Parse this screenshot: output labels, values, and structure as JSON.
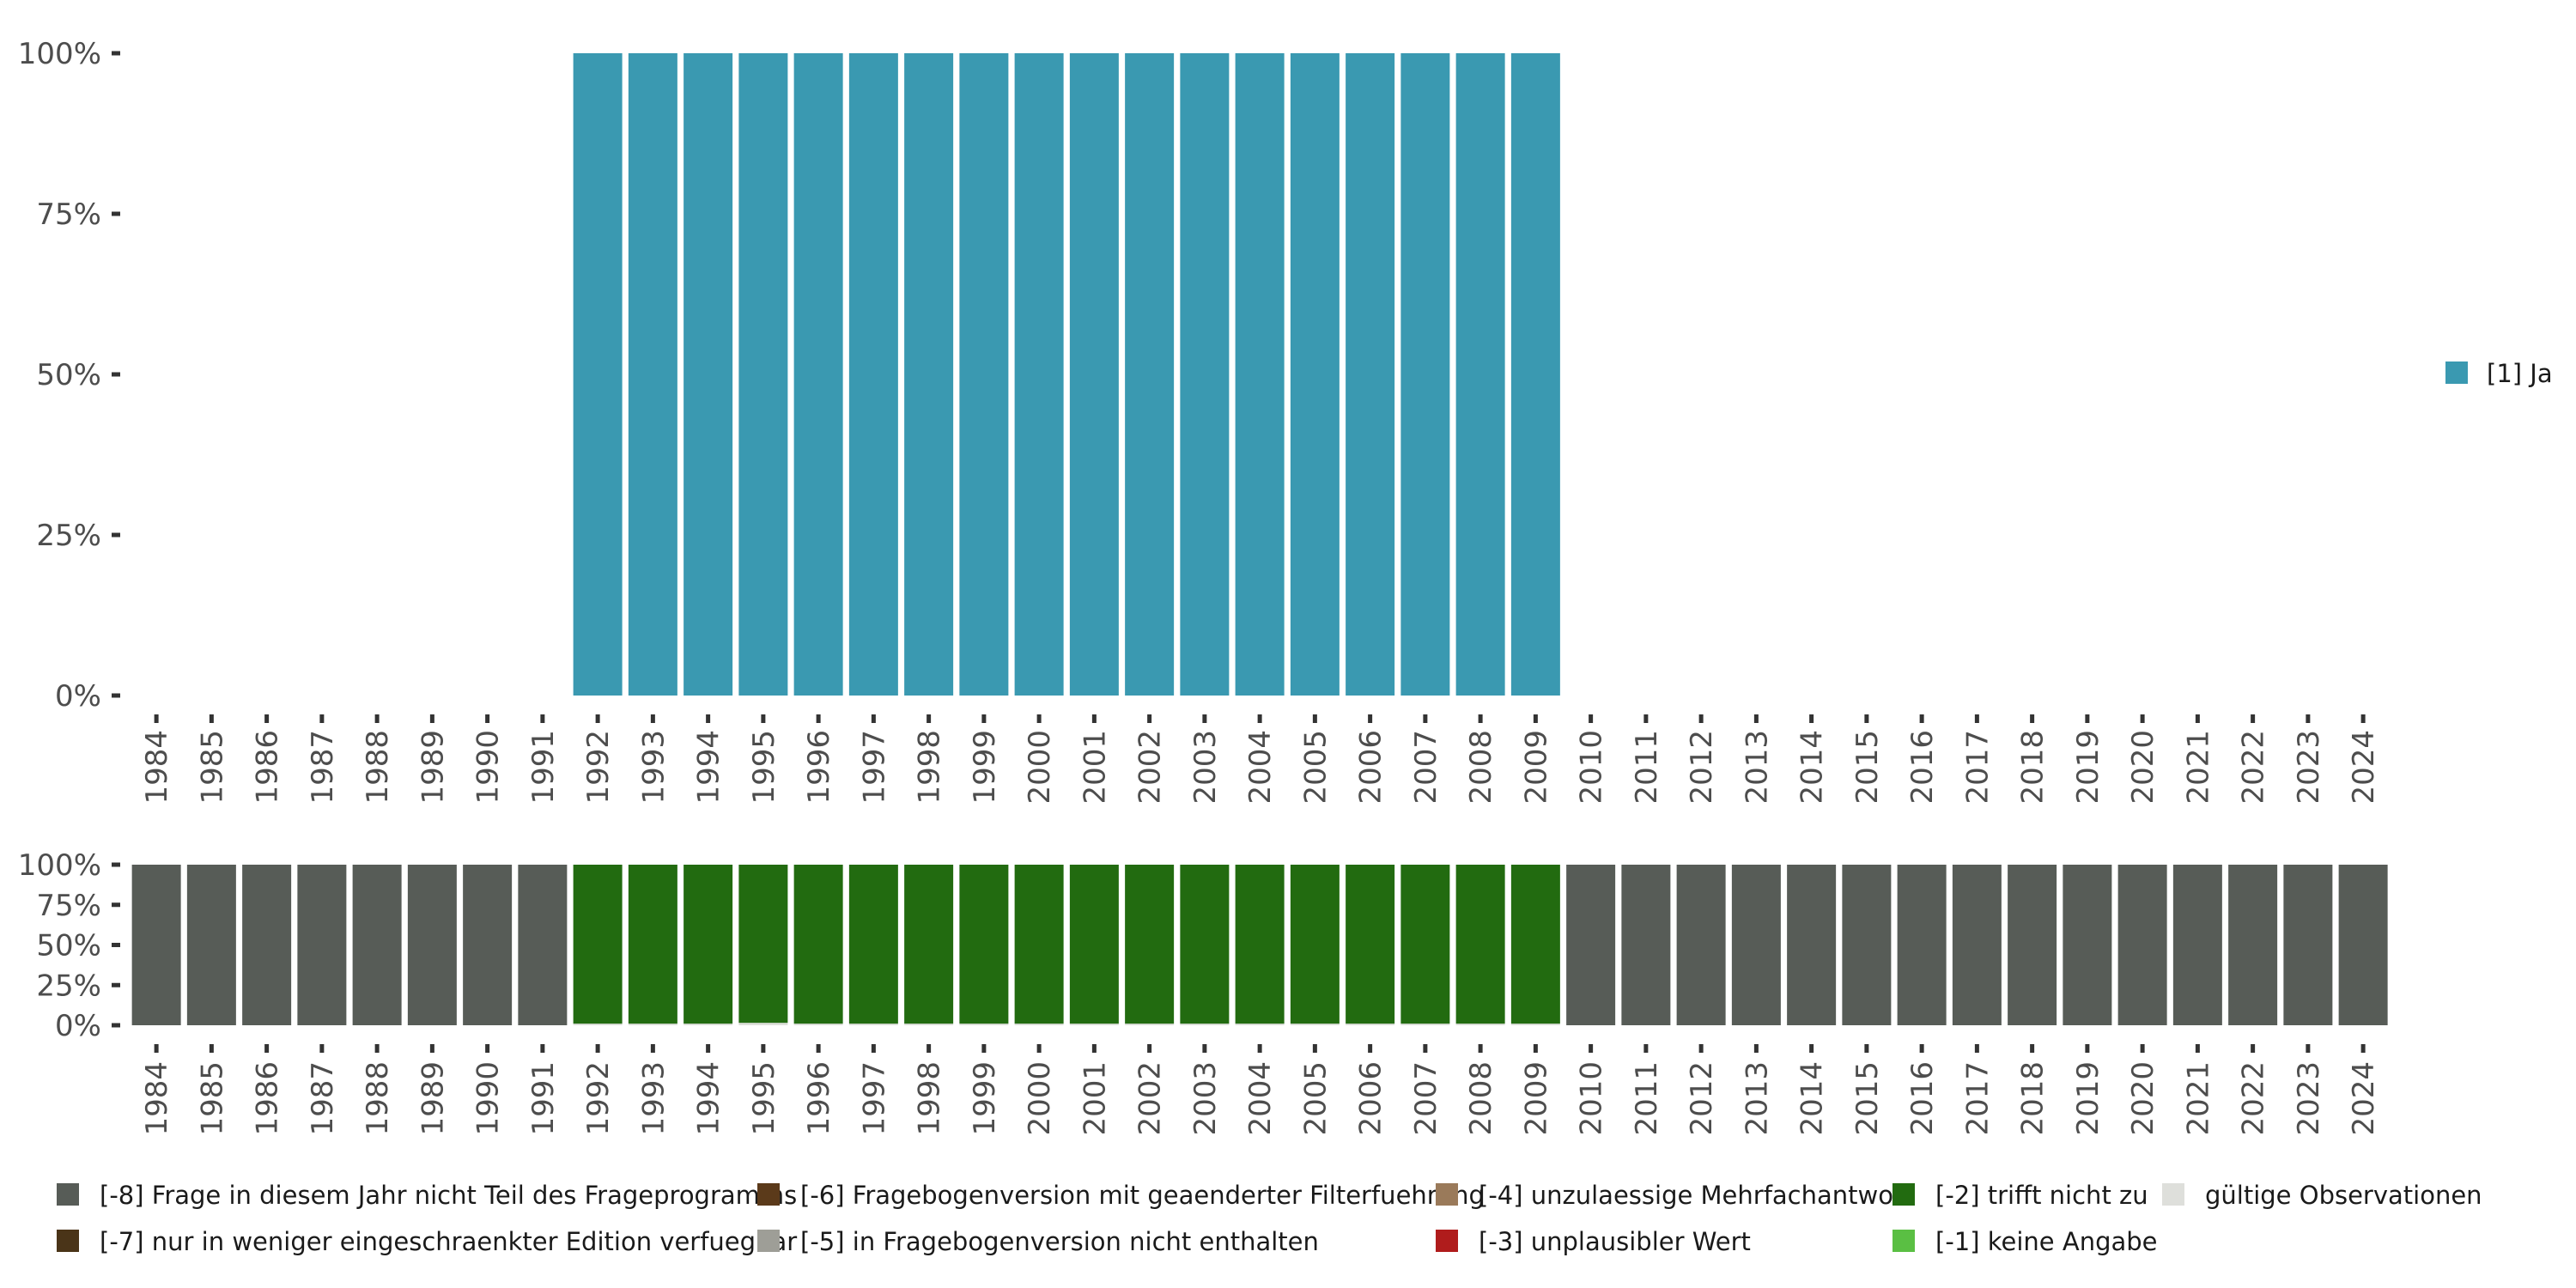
{
  "chart_data": [
    {
      "type": "bar",
      "stacked": true,
      "categories": [
        "1984",
        "1985",
        "1986",
        "1987",
        "1988",
        "1989",
        "1990",
        "1991",
        "1992",
        "1993",
        "1994",
        "1995",
        "1996",
        "1997",
        "1998",
        "1999",
        "2000",
        "2001",
        "2002",
        "2003",
        "2004",
        "2005",
        "2006",
        "2007",
        "2008",
        "2009",
        "2010",
        "2011",
        "2012",
        "2013",
        "2014",
        "2015",
        "2016",
        "2017",
        "2018",
        "2019",
        "2020",
        "2021",
        "2022",
        "2023",
        "2024"
      ],
      "series": [
        {
          "name": "[1] Ja",
          "color": "#3a99b1",
          "values": [
            null,
            null,
            null,
            null,
            null,
            null,
            null,
            null,
            100,
            100,
            100,
            100,
            100,
            100,
            100,
            100,
            100,
            100,
            100,
            100,
            100,
            100,
            100,
            100,
            100,
            100,
            null,
            null,
            null,
            null,
            null,
            null,
            null,
            null,
            null,
            null,
            null,
            null,
            null,
            null,
            null
          ]
        }
      ],
      "ylim": [
        0,
        100
      ],
      "yticks": [
        "0%",
        "25%",
        "50%",
        "75%",
        "100%"
      ],
      "legend_position": "right",
      "title": "",
      "xlabel": "",
      "ylabel": ""
    },
    {
      "type": "bar",
      "stacked": true,
      "categories": [
        "1984",
        "1985",
        "1986",
        "1987",
        "1988",
        "1989",
        "1990",
        "1991",
        "1992",
        "1993",
        "1994",
        "1995",
        "1996",
        "1997",
        "1998",
        "1999",
        "2000",
        "2001",
        "2002",
        "2003",
        "2004",
        "2005",
        "2006",
        "2007",
        "2008",
        "2009",
        "2010",
        "2011",
        "2012",
        "2013",
        "2014",
        "2015",
        "2016",
        "2017",
        "2018",
        "2019",
        "2020",
        "2021",
        "2022",
        "2023",
        "2024"
      ],
      "series": [
        {
          "name": "gültige Observationen",
          "color": "#dedfdb",
          "values": [
            0,
            0,
            0,
            0,
            0,
            0,
            0,
            0,
            1,
            1,
            1,
            1.5,
            1,
            1,
            1,
            1,
            1,
            1,
            1,
            1,
            1,
            1,
            1,
            1,
            1,
            1,
            0,
            0,
            0,
            0,
            0,
            0,
            0,
            0,
            0,
            0,
            0,
            0,
            0,
            0,
            0
          ]
        },
        {
          "name": "[-2] trifft nicht zu",
          "color": "#226b10",
          "values": [
            0,
            0,
            0,
            0,
            0,
            0,
            0,
            0,
            99,
            99,
            99,
            98.5,
            99,
            99,
            99,
            99,
            99,
            99,
            99,
            99,
            99,
            99,
            99,
            99,
            99,
            99,
            0,
            0,
            0,
            0,
            0,
            0,
            0,
            0,
            0,
            0,
            0,
            0,
            0,
            0,
            0
          ]
        },
        {
          "name": "[-8] Frage in diesem Jahr nicht Teil des Frageprogramms",
          "color": "#575c57",
          "values": [
            100,
            100,
            100,
            100,
            100,
            100,
            100,
            100,
            0,
            0,
            0,
            0,
            0,
            0,
            0,
            0,
            0,
            0,
            0,
            0,
            0,
            0,
            0,
            0,
            0,
            0,
            100,
            100,
            100,
            100,
            100,
            100,
            100,
            100,
            100,
            100,
            100,
            100,
            100,
            100,
            100
          ]
        }
      ],
      "ylim": [
        0,
        100
      ],
      "yticks": [
        "0%",
        "25%",
        "50%",
        "75%",
        "100%"
      ],
      "legend": [
        {
          "label": "[-8] Frage in diesem Jahr nicht Teil des Frageprogramms",
          "color": "#575c57"
        },
        {
          "label": "[-7] nur in weniger eingeschraenkter Edition verfuegbar",
          "color": "#4a3418"
        },
        {
          "label": "[-6] Fragebogenversion mit geaenderter Filterfuehrung",
          "color": "#5b3a1a"
        },
        {
          "label": "[-5] in Fragebogenversion nicht enthalten",
          "color": "#9e9e97"
        },
        {
          "label": "[-4] unzulaessige Mehrfachantwort",
          "color": "#9a7a5a"
        },
        {
          "label": "[-3] unplausibler Wert",
          "color": "#b01c1c"
        },
        {
          "label": "[-2] trifft nicht zu",
          "color": "#226b10"
        },
        {
          "label": "[-1] keine Angabe",
          "color": "#5abf43"
        },
        {
          "label": "gültige Observationen",
          "color": "#dedfdb"
        }
      ],
      "legend_position": "bottom",
      "title": "",
      "xlabel": "",
      "ylabel": ""
    }
  ]
}
